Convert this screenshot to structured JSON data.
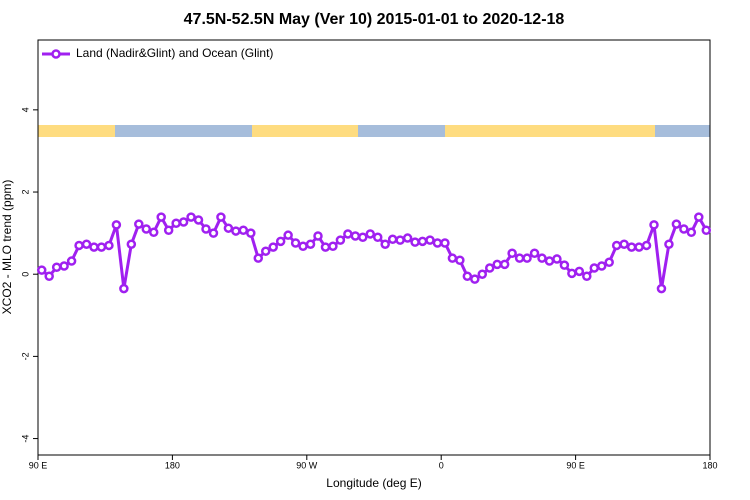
{
  "chart_data": {
    "type": "line",
    "title": "47.5N-52.5N May (Ver 10)   2015-01-01 to 2020-12-18",
    "x_label": "Longitude (deg E)",
    "y_label": "XCO2 - MLO trend (ppm)",
    "xlim": [
      90,
      540
    ],
    "ylim": [
      -4.4,
      5.7
    ],
    "xticks": [
      {
        "value": 90,
        "label": "90 E"
      },
      180,
      {
        "value": 270,
        "label": "90 W"
      },
      {
        "value": 360,
        "label": "0"
      },
      {
        "value": 450,
        "label": "90 E"
      },
      {
        "value": 540,
        "label": "180"
      }
    ],
    "yticks": [
      -4,
      -2,
      0,
      2,
      4
    ],
    "grid": false,
    "legend": "top-left",
    "x": [
      92.5,
      97.5,
      102.5,
      107.5,
      112.5,
      117.5,
      122.5,
      127.5,
      132.5,
      137.5,
      142.5,
      147.5,
      152.5,
      157.5,
      162.5,
      167.5,
      172.5,
      177.5,
      182.5,
      187.5,
      192.5,
      197.5,
      202.5,
      207.5,
      212.5,
      217.5,
      222.5,
      227.5,
      232.5,
      237.5,
      242.5,
      247.5,
      252.5,
      257.5,
      262.5,
      267.5,
      272.5,
      277.5,
      282.5,
      287.5,
      292.5,
      297.5,
      302.5,
      307.5,
      312.5,
      317.5,
      322.5,
      327.5,
      332.5,
      337.5,
      342.5,
      347.5,
      352.5,
      357.5,
      362.5,
      367.5,
      372.5,
      377.5,
      382.5,
      387.5,
      392.5,
      397.5,
      402.5,
      407.5,
      412.5,
      417.5,
      422.5,
      427.5,
      432.5,
      437.5,
      442.5,
      447.5,
      452.5,
      457.5,
      462.5,
      467.5,
      472.5,
      477.5,
      482.5,
      487.5,
      492.5,
      497.5,
      502.5,
      507.5,
      512.5,
      517.5,
      522.5,
      527.5,
      532.5,
      537.5
    ],
    "series": [
      {
        "name": "Land (Nadir&Glint) and Ocean (Glint)",
        "color": "#a020f0",
        "values": [
          0.1,
          -0.05,
          0.17,
          0.2,
          0.32,
          0.7,
          0.73,
          0.66,
          0.66,
          0.7,
          1.2,
          -0.35,
          0.73,
          1.22,
          1.1,
          1.02,
          1.39,
          1.07,
          1.24,
          1.27,
          1.39,
          1.32,
          1.1,
          1.0,
          1.39,
          1.12,
          1.05,
          1.07,
          1.0,
          0.39,
          0.56,
          0.66,
          0.8,
          0.95,
          0.76,
          0.68,
          0.73,
          0.93,
          0.66,
          0.68,
          0.83,
          0.98,
          0.93,
          0.9,
          0.98,
          0.9,
          0.73,
          0.85,
          0.83,
          0.88,
          0.78,
          0.8,
          0.83,
          0.76,
          0.76,
          0.39,
          0.34,
          -0.05,
          -0.12,
          0,
          0.15,
          0.24,
          0.24,
          0.51,
          0.39,
          0.39,
          0.51,
          0.39,
          0.32,
          0.37,
          0.22,
          0.02,
          0.07,
          -0.05,
          0.15,
          0.2,
          0.29,
          0.7,
          0.73,
          0.66,
          0.66,
          0.7,
          1.2,
          -0.35,
          0.73,
          1.22,
          1.1,
          1.02,
          1.39,
          1.07
        ]
      }
    ]
  }
}
